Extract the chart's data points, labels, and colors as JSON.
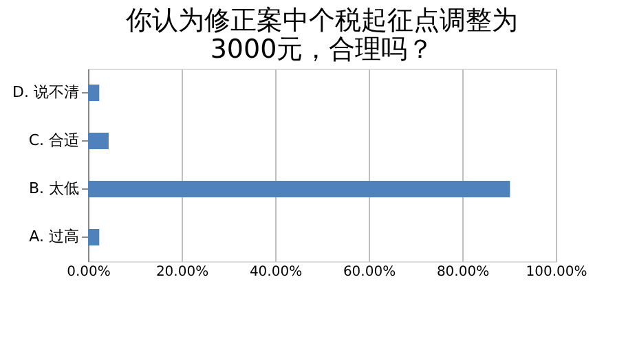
{
  "chart_data": {
    "type": "bar",
    "orientation": "horizontal",
    "title": "你认为修正案中个税起征点调整为3000元，合理吗？",
    "categories": [
      "D. 说不清",
      "C. 合适",
      "B. 太低",
      "A. 过高"
    ],
    "values": [
      2.4,
      4.4,
      90.2,
      2.4
    ],
    "color": "#4f81bd",
    "xlim": [
      0,
      100
    ],
    "xticks": [
      {
        "value": 0,
        "label": "0.00%"
      },
      {
        "value": 20,
        "label": "20.00%"
      },
      {
        "value": 40,
        "label": "40.00%"
      },
      {
        "value": 60,
        "label": "60.00%"
      },
      {
        "value": 80,
        "label": "80.00%"
      },
      {
        "value": 100,
        "label": "100.00%"
      }
    ],
    "grid": "x"
  }
}
